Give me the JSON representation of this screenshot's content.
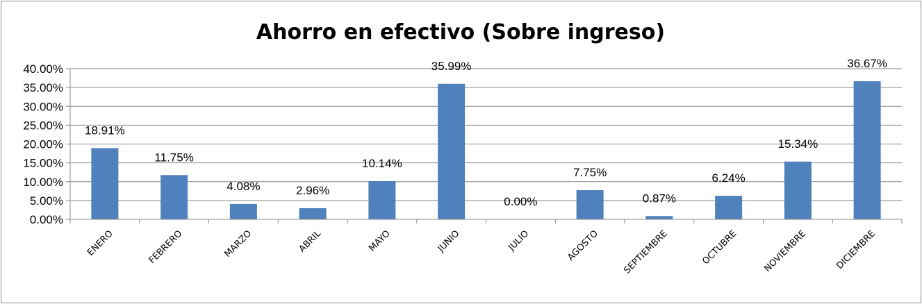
{
  "chart_data": {
    "type": "bar",
    "title": "Ahorro en efectivo (Sobre ingreso)",
    "xlabel": "",
    "ylabel": "",
    "categories": [
      "ENERO",
      "FEBRERO",
      "MARZO",
      "ABRIL",
      "MAYO",
      "JUNIO",
      "JULIO",
      "AGOSTO",
      "SEPTIEMBRE",
      "OCTUBRE",
      "NOVIEMBRE",
      "DICIEMBRE"
    ],
    "values": [
      18.91,
      11.75,
      4.08,
      2.96,
      10.14,
      35.99,
      0.0,
      7.75,
      0.87,
      6.24,
      15.34,
      36.67
    ],
    "data_labels": [
      "18.91%",
      "11.75%",
      "4.08%",
      "2.96%",
      "10.14%",
      "35.99%",
      "0.00%",
      "7.75%",
      "0.87%",
      "6.24%",
      "15.34%",
      "36.67%"
    ],
    "y_ticks": [
      "0.00%",
      "5.00%",
      "10.00%",
      "15.00%",
      "20.00%",
      "25.00%",
      "30.00%",
      "35.00%",
      "40.00%"
    ],
    "ylim": [
      0,
      40
    ],
    "grid": true,
    "legend": "none",
    "bar_color": "#4f81bd"
  }
}
